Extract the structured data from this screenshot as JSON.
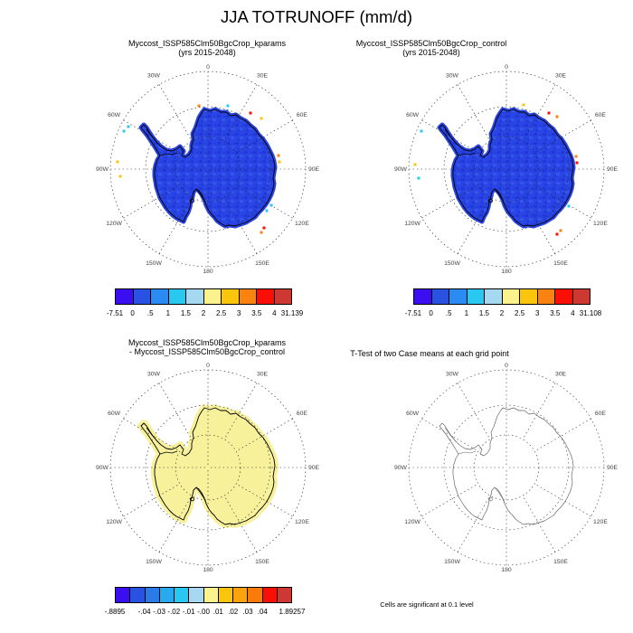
{
  "figure_title": "JJA TOTRUNOFF (mm/d)",
  "colors": {
    "continent_blue": "#2945e3",
    "texture_dark": "#1b2bd5",
    "texture_light": "#4066ee",
    "diff_yellow": "#f8f19c",
    "coastline": "#000000",
    "coastline_gray": "#666666",
    "grid": "#222222",
    "lon_label": "#444444"
  },
  "map_grid": {
    "angles": [
      0,
      30,
      60,
      90,
      120,
      150,
      180,
      210,
      240,
      270,
      300,
      330
    ],
    "labels": [
      "0",
      "30E",
      "60E",
      "90E",
      "120E",
      "150E",
      "180",
      "150W",
      "120W",
      "90W",
      "60W",
      "30W"
    ]
  },
  "panels": {
    "top_left": {
      "title_line1": "Myccost_ISSP585Clm50BgcCrop_kparams",
      "title_line2": "(yrs 2015-2048)",
      "fill": "#2945e3",
      "textured": true,
      "outline": "#000000",
      "halo": 5,
      "specks": [
        [
          177,
          68,
          "#fa0f07"
        ],
        [
          189,
          74,
          "#fbc40d"
        ],
        [
          208,
          115,
          "#fa8310"
        ],
        [
          209,
          122,
          "#fbc40d"
        ],
        [
          200,
          170,
          "#29c8f0"
        ],
        [
          195,
          176,
          "#29c8f0"
        ],
        [
          192,
          195,
          "#fa0f07"
        ],
        [
          189,
          200,
          "#fa8310"
        ],
        [
          30,
          122,
          "#fbc40d"
        ],
        [
          33,
          138,
          "#fbc40d"
        ],
        [
          37,
          88,
          "#29c8f0"
        ],
        [
          42,
          83,
          "#29c8f0"
        ],
        [
          152,
          60,
          "#29c8f0"
        ],
        [
          120,
          60,
          "#fa8310"
        ]
      ]
    },
    "top_right": {
      "title_line1": "Myccost_ISSP585Clm50BgcCrop_control",
      "title_line2": "(yrs 2015-2048)",
      "fill": "#2945e3",
      "textured": true,
      "outline": "#000000",
      "halo": 5,
      "specks": [
        [
          177,
          68,
          "#fa0f07"
        ],
        [
          186,
          72,
          "#fa8310"
        ],
        [
          207,
          116,
          "#fa8310"
        ],
        [
          208,
          123,
          "#fa0f07"
        ],
        [
          199,
          171,
          "#29c8f0"
        ],
        [
          190,
          198,
          "#fa8310"
        ],
        [
          186,
          202,
          "#fa0f07"
        ],
        [
          29,
          125,
          "#fbc40d"
        ],
        [
          33,
          140,
          "#29c8f0"
        ],
        [
          36,
          88,
          "#29c8f0"
        ],
        [
          149,
          59,
          "#fbc40d"
        ]
      ]
    },
    "bottom_left": {
      "title_line1": "Myccost_ISSP585Clm50BgcCrop_kparams",
      "title_line2": "- Myccost_ISSP585Clm50BgcCrop_control",
      "fill": "#f8f19c",
      "textured": false,
      "outline": "#000000",
      "halo": 8,
      "specks": []
    },
    "bottom_right": {
      "title_line1": "T-Test of two Case means at each grid point",
      "caption": "Cells are significant at 0.1 level",
      "fill": "none",
      "textured": false,
      "outline": "#666666",
      "halo": 0,
      "specks": []
    }
  },
  "colorbars": {
    "top_left": {
      "colors": [
        "#3b0df1",
        "#2a52e2",
        "#2a8cf2",
        "#29c8f0",
        "#a6d8f2",
        "#faf38d",
        "#fbc40d",
        "#fa8310",
        "#fa0f07",
        "#ce3833"
      ],
      "labels": [
        "-7.51",
        "0",
        ".5",
        "1",
        "1.5",
        "2",
        "2.5",
        "3",
        "3.5",
        "4",
        "31.139"
      ],
      "positions": [
        0,
        0.1,
        0.2,
        0.3,
        0.4,
        0.5,
        0.6,
        0.7,
        0.8,
        0.9,
        1
      ]
    },
    "top_right": {
      "colors": [
        "#3b0df1",
        "#2a52e2",
        "#2a8cf2",
        "#29c8f0",
        "#a6d8f2",
        "#faf38d",
        "#fbc40d",
        "#fa8310",
        "#fa0f07",
        "#ce3833"
      ],
      "labels": [
        "-7.51",
        "0",
        ".5",
        "1",
        "1.5",
        "2",
        "2.5",
        "3",
        "3.5",
        "4",
        "31.108"
      ],
      "positions": [
        0,
        0.1,
        0.2,
        0.3,
        0.4,
        0.5,
        0.6,
        0.7,
        0.8,
        0.9,
        1
      ]
    },
    "bottom_left": {
      "colors": [
        "#3b0df1",
        "#2a52e2",
        "#2a7ae8",
        "#29a9ee",
        "#29c8f0",
        "#a6d8f2",
        "#faf38d",
        "#fbc40d",
        "#fba30c",
        "#fa7a0a",
        "#fa0f07",
        "#ce3833"
      ],
      "labels": [
        "-.8895",
        "-.04",
        "-.03",
        "-.02",
        "-.01",
        "-.00",
        ".01",
        ".02",
        ".03",
        ".04",
        "1.89257"
      ],
      "positions": [
        0,
        0.1667,
        0.25,
        0.3333,
        0.4167,
        0.5,
        0.5833,
        0.6667,
        0.75,
        0.8333,
        1
      ]
    }
  },
  "chart_data": [
    {
      "type": "heatmap",
      "subtype": "south-polar-stereographic-map",
      "region": "Antarctica",
      "variable": "JJA TOTRUNOFF (mm/d)",
      "title": "Myccost_ISSP585Clm50BgcCrop_kparams (yrs 2015-2048)",
      "colorbar_tick_labels": [
        -7.51,
        0,
        0.5,
        1,
        1.5,
        2,
        2.5,
        3,
        3.5,
        4,
        31.139
      ],
      "data_min": -7.51,
      "data_max": 31.139,
      "dominant_fill": "continent almost entirely in 0-0.5 mm/d blue bin with scattered warm-colored coastal cells",
      "lon_ring_labels": [
        "0",
        "30E",
        "60E",
        "90E",
        "120E",
        "150E",
        "180",
        "150W",
        "120W",
        "90W",
        "60W",
        "30W"
      ]
    },
    {
      "type": "heatmap",
      "subtype": "south-polar-stereographic-map",
      "region": "Antarctica",
      "variable": "JJA TOTRUNOFF (mm/d)",
      "title": "Myccost_ISSP585Clm50BgcCrop_control (yrs 2015-2048)",
      "colorbar_tick_labels": [
        -7.51,
        0,
        0.5,
        1,
        1.5,
        2,
        2.5,
        3,
        3.5,
        4,
        31.108
      ],
      "data_min": -7.51,
      "data_max": 31.108,
      "dominant_fill": "continent almost entirely in 0-0.5 mm/d blue bin with scattered warm-colored coastal cells",
      "lon_ring_labels": [
        "0",
        "30E",
        "60E",
        "90E",
        "120E",
        "150E",
        "180",
        "150W",
        "120W",
        "90W",
        "60W",
        "30W"
      ]
    },
    {
      "type": "heatmap",
      "subtype": "south-polar-stereographic-map",
      "region": "Antarctica",
      "variable": "difference of JJA TOTRUNOFF (mm/d)",
      "title": "Myccost_ISSP585Clm50BgcCrop_kparams - Myccost_ISSP585Clm50BgcCrop_control",
      "colorbar_tick_labels": [
        -0.8895,
        -0.04,
        -0.03,
        -0.02,
        -0.01,
        -0.0,
        0.01,
        0.02,
        0.03,
        0.04,
        1.89257
      ],
      "data_min": -0.8895,
      "data_max": 1.89257,
      "dominant_fill": "continent uniformly in the near-zero pale-yellow bin",
      "lon_ring_labels": [
        "0",
        "30E",
        "60E",
        "90E",
        "120E",
        "150E",
        "180",
        "150W",
        "120W",
        "90W",
        "60W",
        "30W"
      ]
    },
    {
      "type": "map",
      "subtype": "south-polar-stereographic-map",
      "region": "Antarctica",
      "title": "T-Test of two Case means at each grid point",
      "annotation": "Cells are significant at 0.1 level",
      "dominant_fill": "no significant cells shaded; coastline outline only",
      "lon_ring_labels": [
        "0",
        "30E",
        "60E",
        "90E",
        "120E",
        "150E",
        "180",
        "150W",
        "120W",
        "90W",
        "60W",
        "30W"
      ]
    }
  ]
}
